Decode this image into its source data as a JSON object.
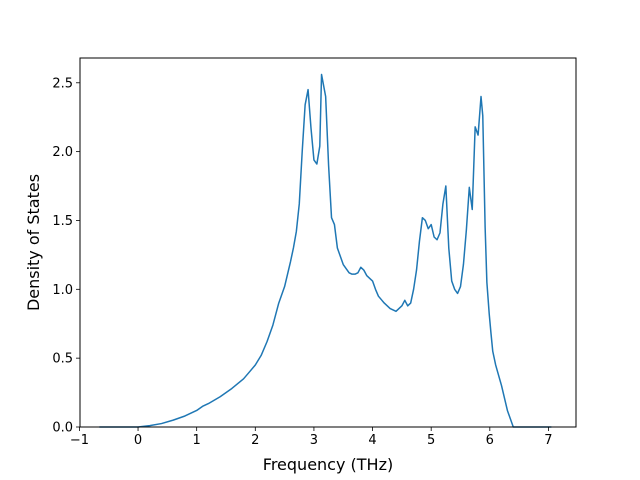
{
  "chart_data": {
    "type": "line",
    "title": "",
    "xlabel": "Frequency (THz)",
    "ylabel": "Density of States",
    "xlim": [
      -0.99,
      7.47
    ],
    "ylim": [
      0.0,
      2.68
    ],
    "xticks": [
      -1,
      0,
      1,
      2,
      3,
      4,
      5,
      6,
      7
    ],
    "xtick_labels": [
      "−1",
      "0",
      "1",
      "2",
      "3",
      "4",
      "5",
      "6",
      "7"
    ],
    "yticks": [
      0.0,
      0.5,
      1.0,
      1.5,
      2.0,
      2.5
    ],
    "ytick_labels": [
      "0.0",
      "0.5",
      "1.0",
      "1.5",
      "2.0",
      "2.5"
    ],
    "grid": false,
    "legend": "none",
    "series": [
      {
        "color": "#1f77b4",
        "x": [
          -0.66,
          -0.3,
          0.0,
          0.2,
          0.4,
          0.6,
          0.8,
          1.0,
          1.1,
          1.2,
          1.4,
          1.6,
          1.8,
          1.9,
          2.0,
          2.1,
          2.2,
          2.3,
          2.4,
          2.5,
          2.6,
          2.65,
          2.7,
          2.75,
          2.8,
          2.85,
          2.9,
          2.95,
          3.0,
          3.05,
          3.1,
          3.13,
          3.2,
          3.25,
          3.3,
          3.35,
          3.4,
          3.5,
          3.6,
          3.65,
          3.7,
          3.75,
          3.8,
          3.85,
          3.9,
          4.0,
          4.05,
          4.1,
          4.2,
          4.3,
          4.4,
          4.5,
          4.55,
          4.6,
          4.65,
          4.7,
          4.75,
          4.8,
          4.85,
          4.9,
          4.95,
          5.0,
          5.05,
          5.1,
          5.15,
          5.2,
          5.25,
          5.3,
          5.35,
          5.4,
          5.45,
          5.5,
          5.55,
          5.6,
          5.65,
          5.7,
          5.75,
          5.8,
          5.85,
          5.88,
          5.92,
          5.95,
          5.99,
          6.02,
          6.05,
          6.1,
          6.2,
          6.3,
          6.4,
          6.46,
          6.5,
          7.05
        ],
        "y": [
          0.0,
          0.0,
          0.0,
          0.01,
          0.025,
          0.05,
          0.08,
          0.12,
          0.15,
          0.17,
          0.22,
          0.28,
          0.35,
          0.4,
          0.45,
          0.52,
          0.62,
          0.74,
          0.9,
          1.02,
          1.2,
          1.3,
          1.42,
          1.62,
          2.0,
          2.34,
          2.45,
          2.17,
          1.94,
          1.91,
          2.04,
          2.56,
          2.4,
          1.9,
          1.52,
          1.47,
          1.3,
          1.18,
          1.12,
          1.11,
          1.11,
          1.12,
          1.16,
          1.14,
          1.1,
          1.06,
          1.0,
          0.95,
          0.9,
          0.86,
          0.84,
          0.88,
          0.92,
          0.88,
          0.9,
          1.0,
          1.14,
          1.35,
          1.52,
          1.5,
          1.44,
          1.47,
          1.38,
          1.36,
          1.41,
          1.62,
          1.75,
          1.3,
          1.06,
          1.0,
          0.97,
          1.02,
          1.18,
          1.43,
          1.74,
          1.58,
          2.18,
          2.12,
          2.4,
          2.26,
          1.45,
          1.05,
          0.82,
          0.68,
          0.55,
          0.45,
          0.3,
          0.12,
          0.0,
          0.0,
          0.0,
          0.0
        ]
      }
    ]
  }
}
